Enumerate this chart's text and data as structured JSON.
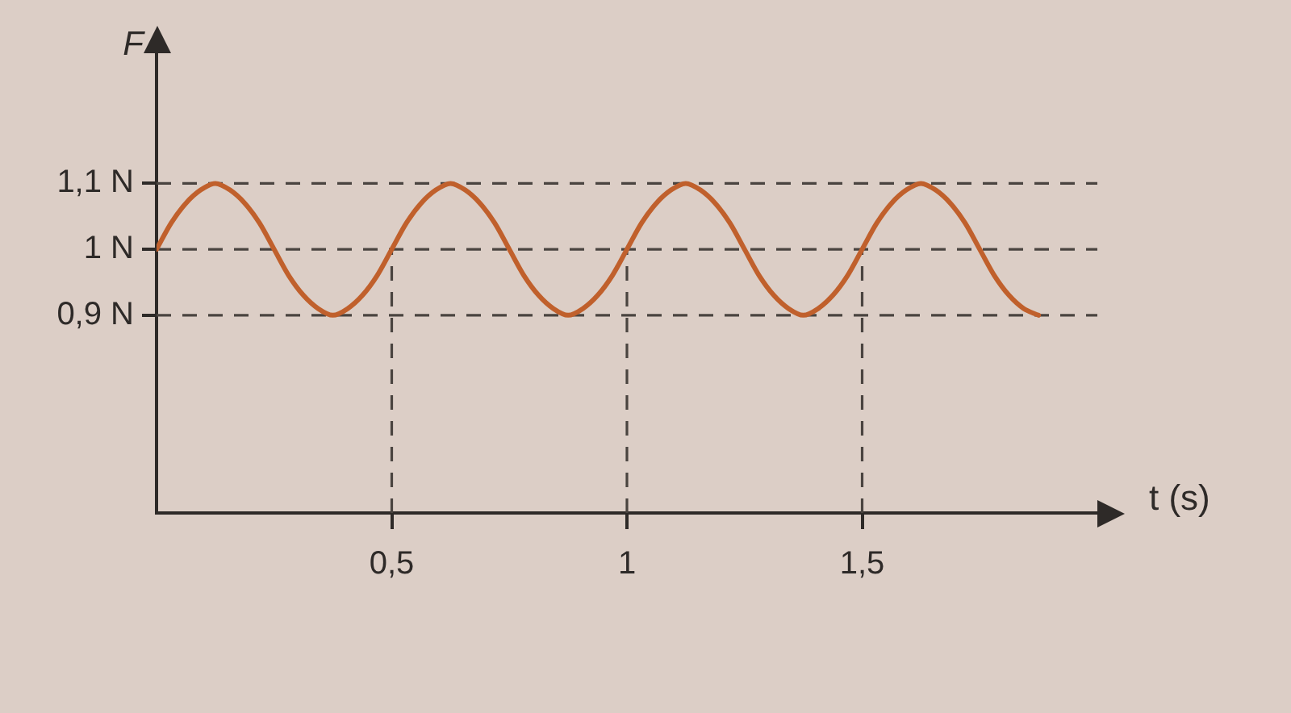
{
  "chart_data": {
    "type": "line",
    "xlabel": "t (s)",
    "ylabel": "F",
    "x": [
      0,
      0.03125,
      0.0625,
      0.09375,
      0.125,
      0.15625,
      0.1875,
      0.21875,
      0.25,
      0.28125,
      0.3125,
      0.34375,
      0.375,
      0.40625,
      0.4375,
      0.46875,
      0.5,
      0.53125,
      0.5625,
      0.59375,
      0.625,
      0.65625,
      0.6875,
      0.71875,
      0.75,
      0.78125,
      0.8125,
      0.84375,
      0.875,
      0.90625,
      0.9375,
      0.96875,
      1,
      1.03125,
      1.0625,
      1.09375,
      1.125,
      1.15625,
      1.1875,
      1.21875,
      1.25,
      1.28125,
      1.3125,
      1.34375,
      1.375,
      1.40625,
      1.4375,
      1.46875,
      1.5,
      1.53125,
      1.5625,
      1.59375,
      1.625,
      1.65625,
      1.6875,
      1.71875,
      1.75,
      1.78125,
      1.8125,
      1.84375,
      1.875
    ],
    "series": [
      {
        "color": "#c0602c",
        "values": [
          1,
          1.04,
          1.07,
          1.09,
          1.1,
          1.09,
          1.07,
          1.04,
          1,
          0.96,
          0.93,
          0.91,
          0.9,
          0.91,
          0.93,
          0.96,
          1,
          1.04,
          1.07,
          1.09,
          1.1,
          1.09,
          1.07,
          1.04,
          1,
          0.96,
          0.93,
          0.91,
          0.9,
          0.91,
          0.93,
          0.96,
          1,
          1.04,
          1.07,
          1.09,
          1.1,
          1.09,
          1.07,
          1.04,
          1,
          0.96,
          0.93,
          0.91,
          0.9,
          0.91,
          0.93,
          0.96,
          1,
          1.04,
          1.07,
          1.09,
          1.1,
          1.09,
          1.07,
          1.04,
          1,
          0.96,
          0.93,
          0.91,
          0.9
        ]
      }
    ],
    "xlim": [
      0,
      2
    ],
    "xticks": [
      {
        "value": 0.5,
        "label": "0,5"
      },
      1,
      {
        "value": 1.5,
        "label": "1,5"
      }
    ],
    "ylim": [
      0.6,
      1.3
    ],
    "yticks": [
      {
        "value": 0.9,
        "label": "0,9 N"
      },
      {
        "value": 1,
        "label": "1 N"
      },
      {
        "value": 1.1,
        "label": "1,1 N"
      }
    ],
    "ref_lines": [
      {
        "axis": "y",
        "value": 1.1,
        "color": "#4a4440",
        "line_style": "dashed"
      },
      {
        "axis": "y",
        "value": 1,
        "color": "#4a4440",
        "line_style": "dashed"
      },
      {
        "axis": "y",
        "value": 0.9,
        "color": "#4a4440",
        "line_style": "dashed"
      },
      {
        "axis": "x",
        "value": 0.5,
        "color": "#4a4440",
        "line_style": "dashed"
      },
      {
        "axis": "x",
        "value": 1,
        "color": "#4a4440",
        "line_style": "dashed"
      },
      {
        "axis": "x",
        "value": 1.5,
        "color": "#4a4440",
        "line_style": "dashed"
      }
    ],
    "grid": false,
    "legend": false,
    "marker": "none",
    "line_style": "solid"
  }
}
